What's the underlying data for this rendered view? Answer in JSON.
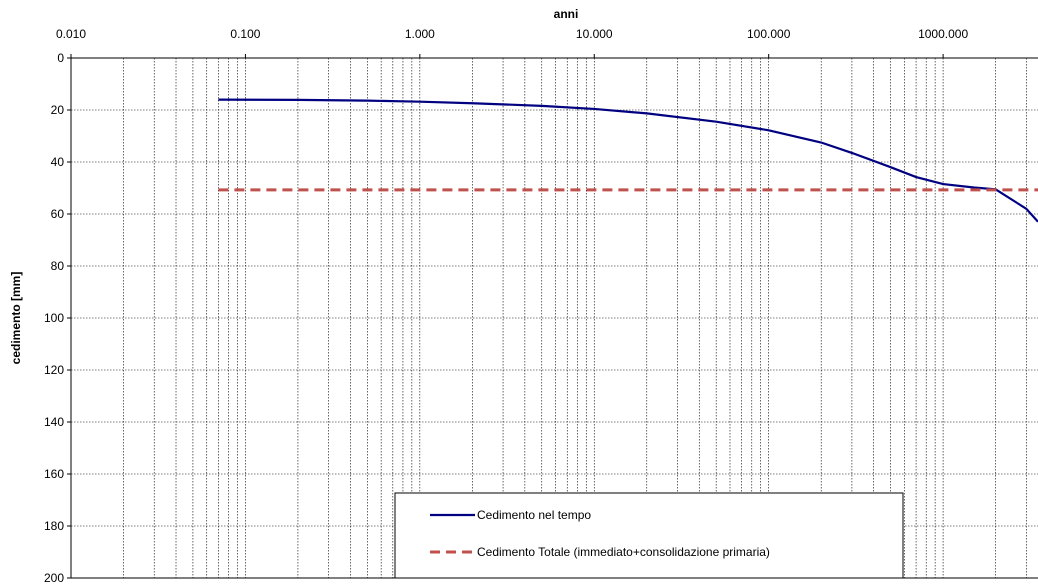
{
  "chart_data": {
    "type": "line",
    "xlabel": "anni",
    "ylabel": "cedimento [mm]",
    "x_scale": "log",
    "x_position": "top",
    "y_inverted": true,
    "xlim": [
      0.01,
      3500
    ],
    "ylim": [
      0,
      200
    ],
    "x_ticks": [
      {
        "value": 0.01,
        "label": "0.010"
      },
      {
        "value": 0.1,
        "label": "0.100"
      },
      {
        "value": 1,
        "label": "1.000"
      },
      {
        "value": 10,
        "label": "10.000"
      },
      {
        "value": 100,
        "label": "100.000"
      },
      {
        "value": 1000,
        "label": "1000.000"
      }
    ],
    "y_ticks": [
      {
        "value": 0,
        "label": "0"
      },
      {
        "value": 20,
        "label": "20"
      },
      {
        "value": 40,
        "label": "40"
      },
      {
        "value": 60,
        "label": "60"
      },
      {
        "value": 80,
        "label": "80"
      },
      {
        "value": 100,
        "label": "100"
      },
      {
        "value": 120,
        "label": "120"
      },
      {
        "value": 140,
        "label": "140"
      },
      {
        "value": 160,
        "label": "160"
      },
      {
        "value": 180,
        "label": "180"
      },
      {
        "value": 200,
        "label": "200"
      }
    ],
    "grid": true,
    "legend_position": "bottom-center",
    "series": [
      {
        "name": "Cedimento nel tempo",
        "color": "#000080",
        "style": "solid",
        "points": [
          [
            0.07,
            16.0
          ],
          [
            0.2,
            16.1
          ],
          [
            0.5,
            16.4
          ],
          [
            1.0,
            16.8
          ],
          [
            2.0,
            17.4
          ],
          [
            5.0,
            18.4
          ],
          [
            10.0,
            19.6
          ],
          [
            20.0,
            21.3
          ],
          [
            50.0,
            24.5
          ],
          [
            100.0,
            27.8
          ],
          [
            200.0,
            32.5
          ],
          [
            300.0,
            36.5
          ],
          [
            500.0,
            42.0
          ],
          [
            700.0,
            45.8
          ],
          [
            1000.0,
            48.5
          ],
          [
            1500.0,
            49.8
          ],
          [
            2000.0,
            50.5
          ],
          [
            3000.0,
            58.0
          ],
          [
            3500.0,
            63.0
          ]
        ]
      },
      {
        "name": "Cedimento Totale (immediato+consolidazione primaria)",
        "color": "#C0504D",
        "style": "dashed",
        "points": [
          [
            0.07,
            50.7
          ],
          [
            3500.0,
            50.7
          ]
        ]
      }
    ]
  }
}
